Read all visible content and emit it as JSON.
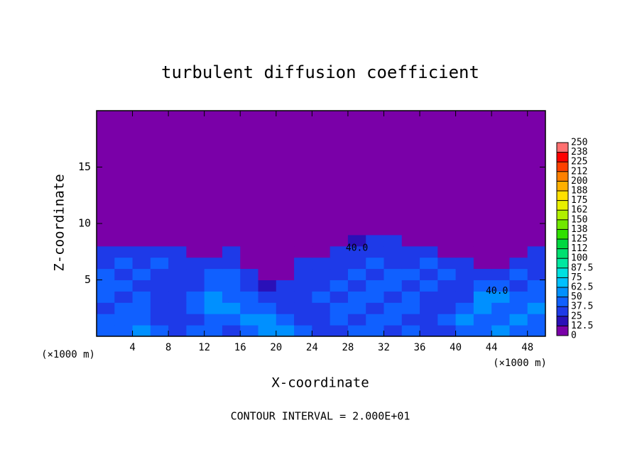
{
  "chart_data": {
    "type": "heatmap",
    "title": "turbulent diffusion coefficient",
    "x_label": "X-coordinate",
    "y_label": "Z-coordinate",
    "x_unit_left": "(×1000 m)",
    "x_unit_right": "(×1000 m)",
    "footer": "CONTOUR INTERVAL = 2.000E+01",
    "xlim": [
      0,
      50
    ],
    "ylim": [
      0,
      20
    ],
    "xticks": [
      4,
      8,
      12,
      16,
      20,
      24,
      28,
      32,
      36,
      40,
      44,
      48
    ],
    "yticks": [
      5,
      10,
      15
    ],
    "x": [
      1,
      3,
      5,
      7,
      9,
      11,
      13,
      15,
      17,
      19,
      21,
      23,
      25,
      27,
      29,
      31,
      33,
      35,
      37,
      39,
      41,
      43,
      45,
      47,
      49
    ],
    "y": [
      0.5,
      1.5,
      2.5,
      3.5,
      4.5,
      5.5,
      6.5,
      7.5,
      8.5,
      9.5
    ],
    "z": [
      [
        45,
        40,
        55,
        40,
        35,
        45,
        40,
        30,
        45,
        60,
        55,
        40,
        35,
        30,
        40,
        45,
        35,
        40,
        30,
        35,
        45,
        40,
        50,
        45,
        40
      ],
      [
        40,
        45,
        40,
        35,
        30,
        35,
        45,
        40,
        50,
        55,
        45,
        35,
        30,
        40,
        35,
        40,
        45,
        35,
        30,
        40,
        50,
        45,
        40,
        55,
        45
      ],
      [
        35,
        40,
        45,
        30,
        35,
        40,
        55,
        50,
        45,
        40,
        35,
        30,
        35,
        40,
        45,
        35,
        40,
        45,
        35,
        30,
        40,
        55,
        45,
        40,
        50
      ],
      [
        40,
        35,
        40,
        35,
        30,
        40,
        50,
        45,
        40,
        35,
        30,
        35,
        40,
        35,
        40,
        45,
        35,
        40,
        35,
        30,
        35,
        50,
        55,
        40,
        45
      ],
      [
        45,
        40,
        35,
        30,
        35,
        35,
        45,
        40,
        35,
        15,
        35,
        30,
        35,
        40,
        35,
        40,
        45,
        35,
        40,
        35,
        30,
        40,
        45,
        35,
        40
      ],
      [
        40,
        35,
        40,
        35,
        30,
        35,
        40,
        45,
        35,
        0,
        5,
        35,
        30,
        35,
        40,
        35,
        40,
        45,
        35,
        40,
        35,
        35,
        30,
        40,
        35
      ],
      [
        30,
        40,
        35,
        40,
        35,
        30,
        30,
        35,
        0,
        0,
        0,
        35,
        30,
        35,
        30,
        40,
        35,
        30,
        40,
        35,
        30,
        0,
        0,
        35,
        30
      ],
      [
        25,
        30,
        35,
        30,
        25,
        0,
        0,
        25,
        0,
        0,
        0,
        0,
        0,
        30,
        25,
        35,
        30,
        25,
        35,
        0,
        0,
        0,
        0,
        0,
        25
      ],
      [
        0,
        0,
        0,
        0,
        0,
        0,
        0,
        0,
        0,
        0,
        0,
        0,
        0,
        0,
        20,
        25,
        25,
        0,
        0,
        0,
        0,
        0,
        0,
        0,
        0
      ],
      [
        0,
        0,
        0,
        0,
        0,
        0,
        0,
        0,
        0,
        0,
        0,
        0,
        0,
        0,
        0,
        10,
        0,
        0,
        0,
        0,
        0,
        0,
        0,
        0,
        0
      ]
    ],
    "colorbar_ticks": [
      0,
      12.5,
      25,
      37.5,
      50,
      62.5,
      75,
      87.5,
      100,
      {
        "value": 112.5,
        "label": "112"
      },
      125,
      {
        "value": 137.5,
        "label": "138"
      },
      150,
      {
        "value": 162.5,
        "label": "162"
      },
      175,
      {
        "value": 187.5,
        "label": "188"
      },
      200,
      {
        "value": 212.5,
        "label": "212"
      },
      225,
      {
        "value": 237.5,
        "label": "238"
      },
      250
    ],
    "colors": [
      "#7a00a8",
      "#2a10b8",
      "#1e3ae8",
      "#1060ff",
      "#0090ff",
      "#00c0ff",
      "#00e0e0",
      "#00e8a0",
      "#00e070",
      "#00d840",
      "#30e000",
      "#70e800",
      "#b0f000",
      "#e8f000",
      "#ffe000",
      "#ffb000",
      "#ff8000",
      "#ff4000",
      "#ff0000",
      "#ff7070"
    ],
    "annotations": [
      {
        "text": "40.0",
        "x": 29,
        "y": 7.8
      },
      {
        "text": "40.0",
        "x": 44.6,
        "y": 4
      }
    ]
  }
}
